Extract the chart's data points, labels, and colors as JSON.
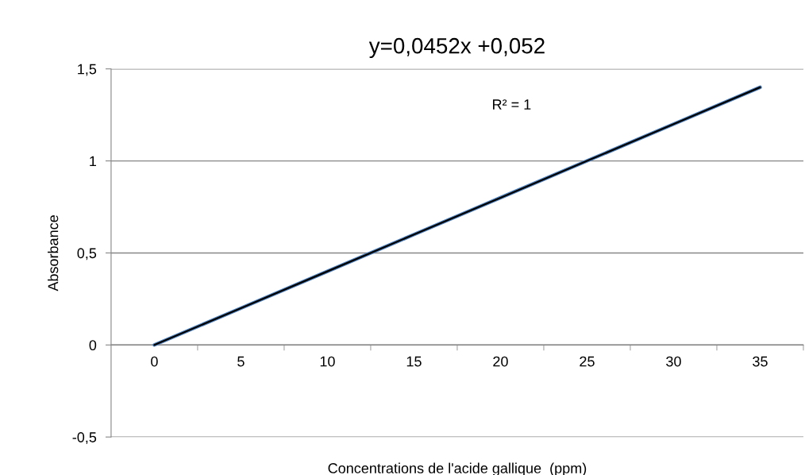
{
  "chart_data": {
    "type": "line",
    "title": "y=0,0452x +0,052",
    "xlabel": "Concentrations de l'acide gallique  (ppm)",
    "ylabel": "Absorbance",
    "categories": [
      "0",
      "5",
      "10",
      "15",
      "20",
      "25",
      "30",
      "35"
    ],
    "series": [
      {
        "color": "#4f81bd",
        "values": [
          0,
          0.2,
          0.4,
          0.6,
          0.8,
          1.0,
          1.2,
          1.4
        ]
      },
      {
        "color": "#000000",
        "values": [
          0,
          0.2,
          0.4,
          0.6,
          0.8,
          1.0,
          1.2,
          1.4
        ]
      }
    ],
    "ylim": [
      -0.5,
      1.5
    ],
    "yticks": [
      {
        "value": -0.5,
        "label": "-0,5"
      },
      0,
      {
        "value": 0.5,
        "label": "0,5"
      },
      1,
      {
        "value": 1.5,
        "label": "1,5"
      }
    ],
    "grid": "y",
    "legend": false,
    "marker": "none",
    "line_style": "solid",
    "annotations": [
      "R² = 1"
    ]
  }
}
